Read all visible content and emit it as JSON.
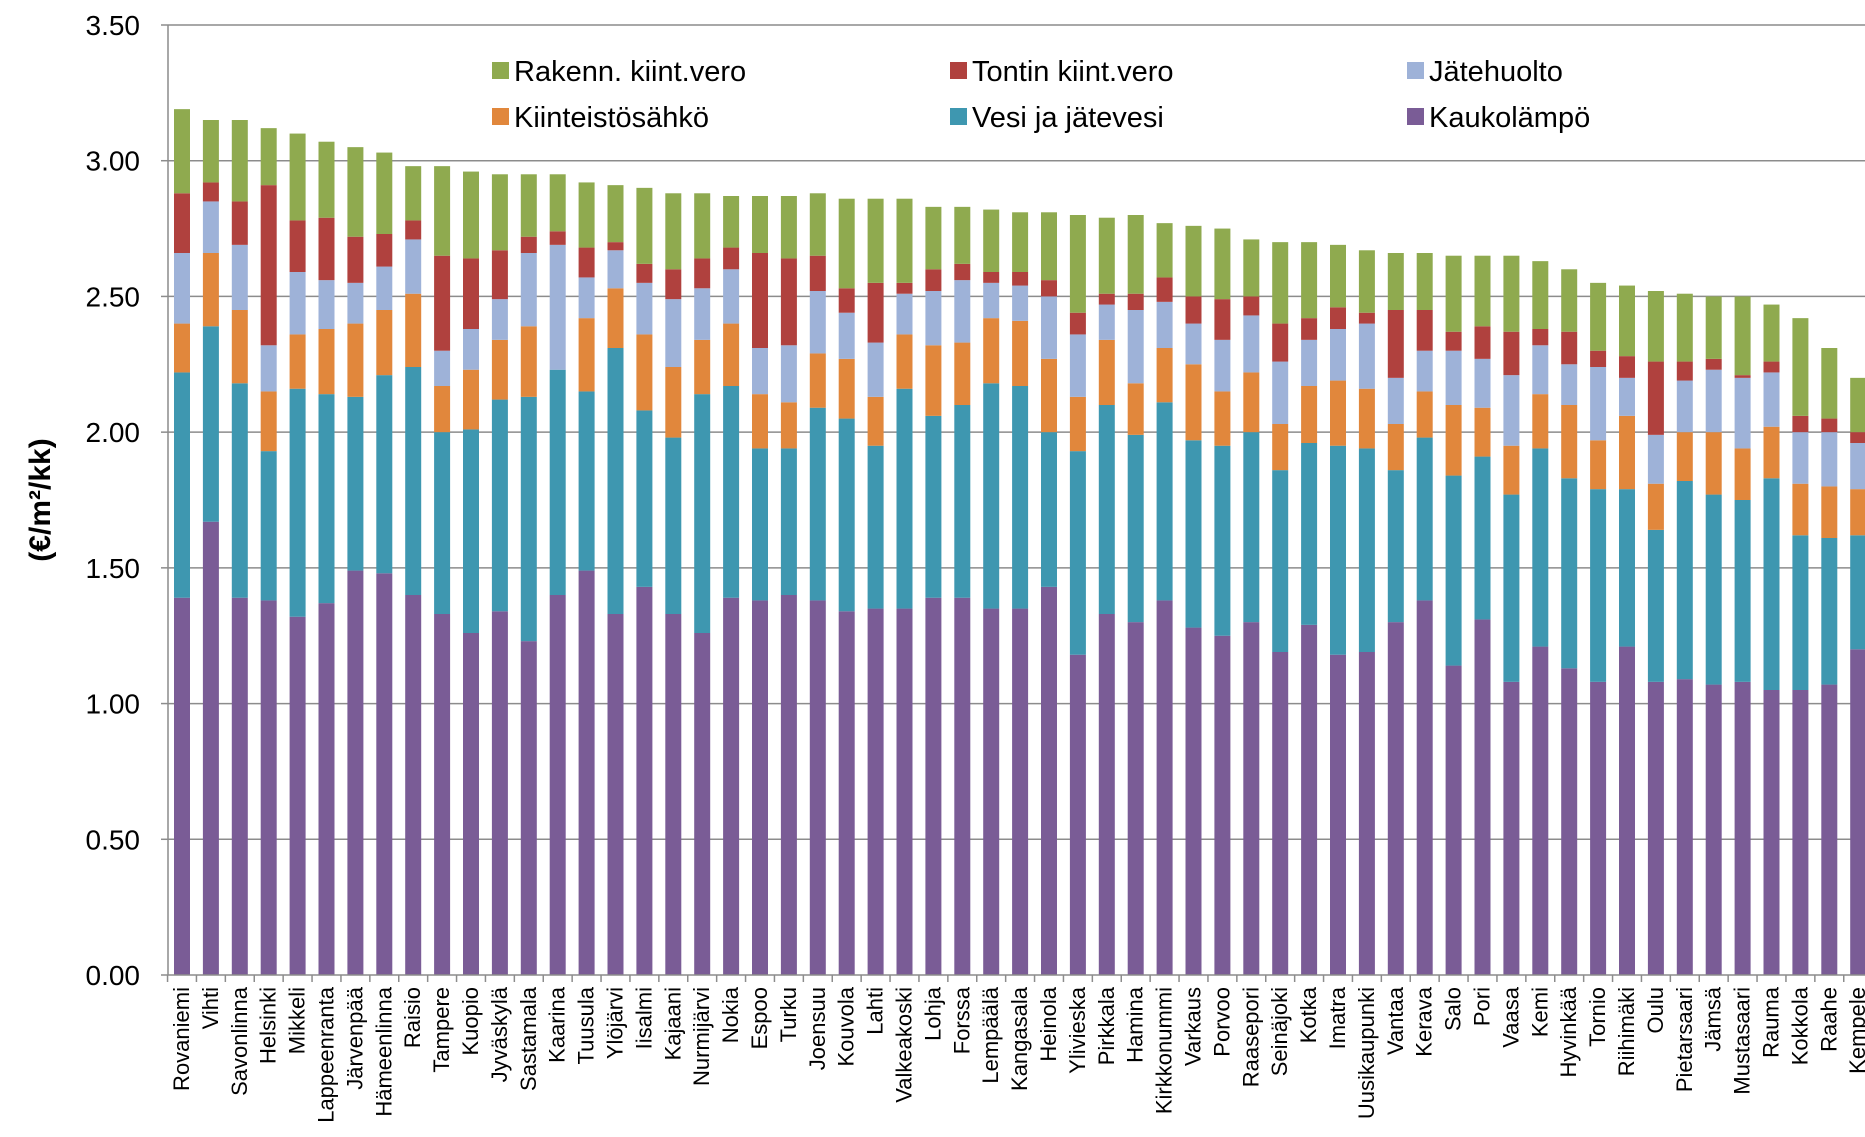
{
  "chart_data": {
    "type": "bar",
    "stacked": true,
    "title": "",
    "xlabel": "",
    "ylabel": "(€/m²/kk)",
    "ylim": [
      0,
      3.5
    ],
    "yticks": [
      "0.00",
      "0.50",
      "1.00",
      "1.50",
      "2.00",
      "2.50",
      "3.00",
      "3.50"
    ],
    "grid": "horizontal",
    "legend_position": "top-inside",
    "categories": [
      "Rovaniemi",
      "Vihti",
      "Savonlinna",
      "Helsinki",
      "Mikkeli",
      "Lappeenranta",
      "Järvenpää",
      "Hämeenlinna",
      "Raisio",
      "Tampere",
      "Kuopio",
      "Jyväskylä",
      "Sastamala",
      "Kaarina",
      "Tuusula",
      "Ylöjärvi",
      "Iisalmi",
      "Kajaani",
      "Nurmijärvi",
      "Nokia",
      "Espoo",
      "Turku",
      "Joensuu",
      "Kouvola",
      "Lahti",
      "Valkeakoski",
      "Lohja",
      "Forssa",
      "Lempäälä",
      "Kangasala",
      "Heinola",
      "Ylivieska",
      "Pirkkala",
      "Hamina",
      "Kirkkonummi",
      "Varkaus",
      "Porvoo",
      "Raasepori",
      "Seinäjoki",
      "Kotka",
      "Imatra",
      "Uusikaupunki",
      "Vantaa",
      "Kerava",
      "Salo",
      "Pori",
      "Vaasa",
      "Kemi",
      "Hyvinkää",
      "Tornio",
      "Riihimäki",
      "Oulu",
      "Pietarsaari",
      "Jämsä",
      "Mustasaari",
      "Rauma",
      "Kokkola",
      "Raahe",
      "Kempele"
    ],
    "series": [
      {
        "name": "Kaukolämpö",
        "color": "#7a5c96",
        "values": [
          1.39,
          1.67,
          1.39,
          1.38,
          1.32,
          1.37,
          1.49,
          1.48,
          1.4,
          1.33,
          1.26,
          1.34,
          1.23,
          1.4,
          1.49,
          1.33,
          1.43,
          1.33,
          1.26,
          1.39,
          1.38,
          1.4,
          1.38,
          1.34,
          1.35,
          1.35,
          1.39,
          1.39,
          1.35,
          1.35,
          1.43,
          1.18,
          1.33,
          1.3,
          1.38,
          1.28,
          1.25,
          1.3,
          1.19,
          1.29,
          1.18,
          1.19,
          1.3,
          1.38,
          1.14,
          1.31,
          1.08,
          1.21,
          1.13,
          1.08,
          1.21,
          1.08,
          1.09,
          1.07,
          1.08,
          1.05,
          1.05,
          1.07,
          1.2
        ]
      },
      {
        "name": "Vesi ja jätevesi",
        "color": "#3e97b0",
        "values": [
          0.83,
          0.72,
          0.79,
          0.55,
          0.84,
          0.77,
          0.64,
          0.73,
          0.84,
          0.67,
          0.75,
          0.78,
          0.9,
          0.83,
          0.66,
          0.98,
          0.65,
          0.65,
          0.88,
          0.78,
          0.56,
          0.54,
          0.71,
          0.71,
          0.6,
          0.81,
          0.67,
          0.71,
          0.83,
          0.82,
          0.57,
          0.75,
          0.77,
          0.69,
          0.73,
          0.69,
          0.7,
          0.7,
          0.67,
          0.67,
          0.77,
          0.75,
          0.56,
          0.6,
          0.7,
          0.6,
          0.69,
          0.73,
          0.7,
          0.71,
          0.58,
          0.56,
          0.73,
          0.7,
          0.67,
          0.78,
          0.57,
          0.54,
          0.42
        ]
      },
      {
        "name": "Kiinteistösähkö",
        "color": "#e1873c",
        "values": [
          0.18,
          0.27,
          0.27,
          0.22,
          0.2,
          0.24,
          0.27,
          0.24,
          0.27,
          0.17,
          0.22,
          0.22,
          0.26,
          0.0,
          0.27,
          0.22,
          0.28,
          0.26,
          0.2,
          0.23,
          0.2,
          0.17,
          0.2,
          0.22,
          0.18,
          0.2,
          0.26,
          0.23,
          0.24,
          0.24,
          0.27,
          0.2,
          0.24,
          0.19,
          0.2,
          0.28,
          0.2,
          0.22,
          0.17,
          0.21,
          0.24,
          0.22,
          0.17,
          0.17,
          0.26,
          0.18,
          0.18,
          0.2,
          0.27,
          0.18,
          0.27,
          0.17,
          0.18,
          0.23,
          0.19,
          0.19,
          0.19,
          0.19,
          0.17
        ]
      },
      {
        "name": "Jätehuolto",
        "color": "#9eb2d8",
        "values": [
          0.26,
          0.19,
          0.24,
          0.17,
          0.23,
          0.18,
          0.15,
          0.16,
          0.2,
          0.13,
          0.15,
          0.15,
          0.27,
          0.46,
          0.15,
          0.14,
          0.19,
          0.25,
          0.19,
          0.2,
          0.17,
          0.21,
          0.23,
          0.17,
          0.2,
          0.15,
          0.2,
          0.23,
          0.13,
          0.13,
          0.23,
          0.23,
          0.13,
          0.27,
          0.17,
          0.15,
          0.19,
          0.21,
          0.23,
          0.17,
          0.19,
          0.24,
          0.17,
          0.15,
          0.2,
          0.18,
          0.26,
          0.18,
          0.15,
          0.27,
          0.14,
          0.18,
          0.19,
          0.23,
          0.26,
          0.2,
          0.19,
          0.2,
          0.17
        ]
      },
      {
        "name": "Tontin kiint.vero",
        "color": "#b0413e",
        "values": [
          0.22,
          0.07,
          0.16,
          0.59,
          0.19,
          0.23,
          0.17,
          0.12,
          0.07,
          0.35,
          0.26,
          0.18,
          0.06,
          0.05,
          0.11,
          0.03,
          0.07,
          0.11,
          0.11,
          0.08,
          0.35,
          0.32,
          0.13,
          0.09,
          0.22,
          0.04,
          0.08,
          0.06,
          0.04,
          0.05,
          0.06,
          0.08,
          0.04,
          0.06,
          0.09,
          0.1,
          0.15,
          0.07,
          0.14,
          0.08,
          0.08,
          0.04,
          0.25,
          0.15,
          0.07,
          0.12,
          0.16,
          0.06,
          0.12,
          0.06,
          0.08,
          0.27,
          0.07,
          0.04,
          0.01,
          0.04,
          0.06,
          0.05,
          0.04
        ]
      },
      {
        "name": "Rakenn. kiint.vero",
        "color": "#8faa4f",
        "values": [
          0.31,
          0.23,
          0.3,
          0.21,
          0.32,
          0.28,
          0.33,
          0.3,
          0.2,
          0.33,
          0.32,
          0.28,
          0.23,
          0.21,
          0.24,
          0.21,
          0.28,
          0.28,
          0.24,
          0.19,
          0.21,
          0.23,
          0.23,
          0.33,
          0.31,
          0.31,
          0.23,
          0.21,
          0.23,
          0.22,
          0.25,
          0.36,
          0.28,
          0.29,
          0.2,
          0.26,
          0.26,
          0.21,
          0.3,
          0.28,
          0.23,
          0.23,
          0.21,
          0.21,
          0.28,
          0.26,
          0.28,
          0.25,
          0.23,
          0.25,
          0.26,
          0.26,
          0.25,
          0.23,
          0.29,
          0.21,
          0.36,
          0.26,
          0.2
        ]
      }
    ],
    "legend": [
      {
        "label": "Rakenn. kiint.vero",
        "color": "#8faa4f"
      },
      {
        "label": "Tontin kiint.vero",
        "color": "#b0413e"
      },
      {
        "label": "Jätehuolto",
        "color": "#9eb2d8"
      },
      {
        "label": "Kiinteistösähkö",
        "color": "#e1873c"
      },
      {
        "label": "Vesi ja jätevesi",
        "color": "#3e97b0"
      },
      {
        "label": "Kaukolämpö",
        "color": "#7a5c96"
      }
    ],
    "colors": {
      "grid": "#8c8c8c",
      "axis": "#8c8c8c"
    }
  }
}
